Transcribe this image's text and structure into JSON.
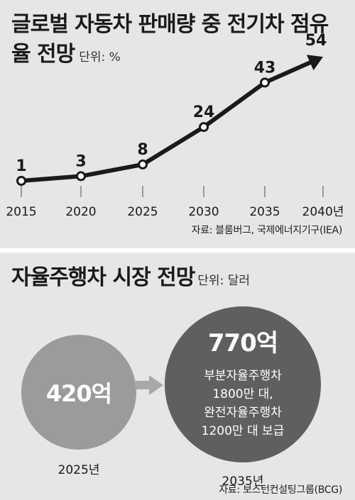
{
  "chart_data": [
    {
      "type": "line",
      "title": "글로벌 자동차 판매량 중 전기차 점유율 전망",
      "unit": "단위: %",
      "categories": [
        "2015",
        "2020",
        "2025",
        "2030",
        "2035",
        "2040년"
      ],
      "values": [
        1,
        3,
        8,
        24,
        43,
        54
      ],
      "source": "자료: 블룸버그, 국제에너지기구(IEA)"
    },
    {
      "type": "bubble",
      "title": "자율주행차 시장 전망",
      "unit": "단위: 달러",
      "categories": [
        "2025년",
        "2035년"
      ],
      "values": [
        420,
        770
      ],
      "value_labels": [
        "420억",
        "770억"
      ],
      "notes": [
        "",
        "부분자율주행차 1800만 대, 완전자율주행차 1200만 대 보급"
      ],
      "note_lines": [
        "부분자율주행차",
        "1800만 대,",
        "완전자율주행차",
        "1200만 대 보급"
      ],
      "source": "자료: 보스턴컨설팅그룹(BCG)"
    }
  ],
  "colors": {
    "panel_bg": "#e6e6e6",
    "line": "#1a1a1a",
    "circle_small": "#9b9b9b",
    "circle_large": "#5f5f5f",
    "arrow": "#a8a8a8"
  }
}
